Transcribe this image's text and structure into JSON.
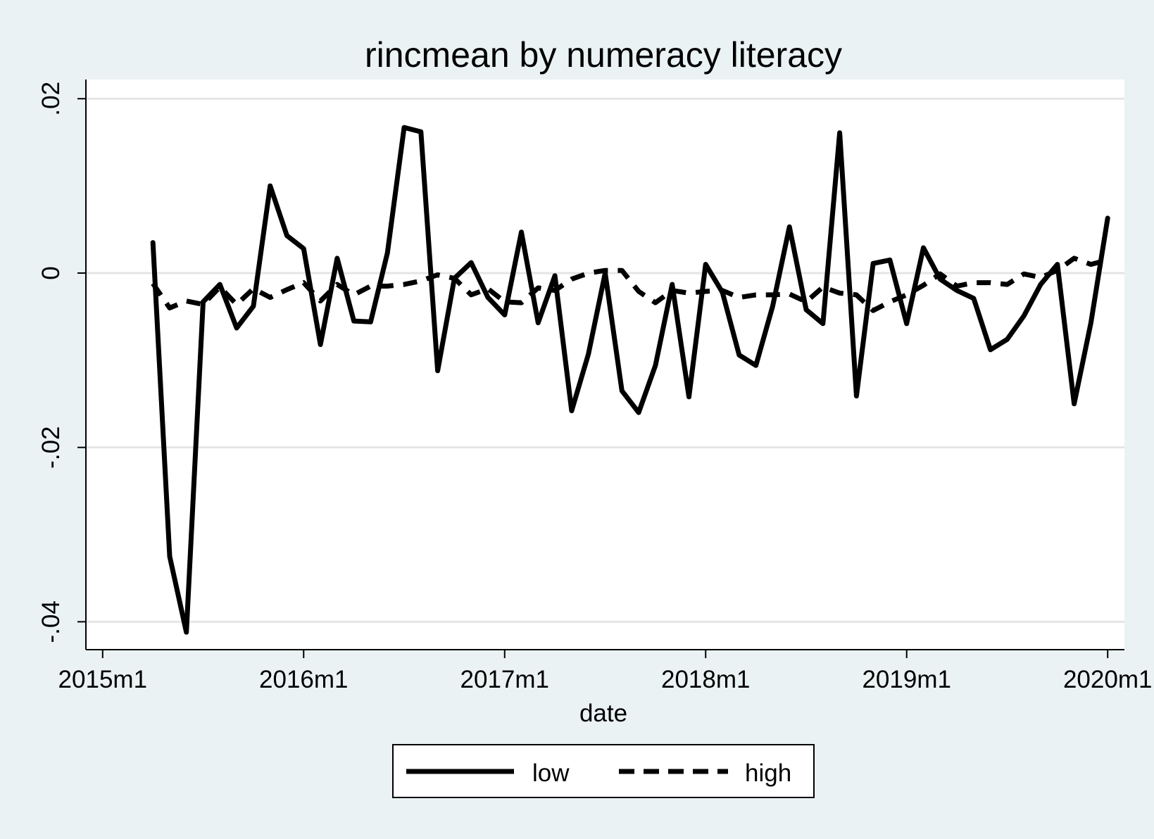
{
  "chart_data": {
    "type": "line",
    "title": "rincmean by numeracy literacy",
    "xlabel": "date",
    "ylabel": "",
    "x_ticks": [
      "2015m1",
      "2016m1",
      "2017m1",
      "2018m1",
      "2019m1",
      "2020m1"
    ],
    "y_ticks": [
      {
        "value": 0.02,
        "label": ".02"
      },
      {
        "value": 0,
        "label": "0"
      },
      {
        "value": -0.02,
        "label": "-.02"
      },
      {
        "value": -0.04,
        "label": "-.04"
      }
    ],
    "xlim": [
      "2014m12",
      "2020m2"
    ],
    "ylim": [
      -0.0432,
      0.0222
    ],
    "grid": true,
    "legend_position": "bottom",
    "x": [
      "2015m4",
      "2015m5",
      "2015m6",
      "2015m7",
      "2015m8",
      "2015m9",
      "2015m10",
      "2015m11",
      "2015m12",
      "2016m1",
      "2016m2",
      "2016m3",
      "2016m4",
      "2016m5",
      "2016m6",
      "2016m7",
      "2016m8",
      "2016m9",
      "2016m10",
      "2016m11",
      "2016m12",
      "2017m1",
      "2017m2",
      "2017m3",
      "2017m4",
      "2017m5",
      "2017m6",
      "2017m7",
      "2017m8",
      "2017m9",
      "2017m10",
      "2017m11",
      "2017m12",
      "2018m1",
      "2018m2",
      "2018m3",
      "2018m4",
      "2018m5",
      "2018m6",
      "2018m7",
      "2018m8",
      "2018m9",
      "2018m10",
      "2018m11",
      "2018m12",
      "2019m1",
      "2019m2",
      "2019m3",
      "2019m4",
      "2019m5",
      "2019m6",
      "2019m7",
      "2019m8",
      "2019m9",
      "2019m10",
      "2019m11",
      "2019m12",
      "2020m1"
    ],
    "series": [
      {
        "name": "low",
        "style": "solid",
        "color": "#000000",
        "values": [
          0.0035,
          -0.0325,
          -0.0412,
          -0.0033,
          -0.0013,
          -0.0063,
          -0.0038,
          0.01,
          0.0043,
          0.0028,
          -0.0082,
          0.0017,
          -0.0055,
          -0.0056,
          0.0023,
          0.0167,
          0.0162,
          -0.0112,
          -0.0006,
          0.0012,
          -0.0028,
          -0.0048,
          0.0047,
          -0.0057,
          -0.0003,
          -0.0158,
          -0.0093,
          0.0,
          -0.0135,
          -0.016,
          -0.0106,
          -0.0013,
          -0.0142,
          0.001,
          -0.0022,
          -0.0094,
          -0.0106,
          -0.0038,
          0.0053,
          -0.0042,
          -0.0058,
          0.0161,
          -0.0141,
          0.0011,
          0.0015,
          -0.0058,
          0.0029,
          -0.0007,
          -0.002,
          -0.0029,
          -0.0088,
          -0.0076,
          -0.0049,
          -0.0013,
          0.001,
          -0.015,
          -0.0057,
          0.0063
        ]
      },
      {
        "name": "high",
        "style": "dashed",
        "color": "#000000",
        "values": [
          -0.0012,
          -0.004,
          -0.0032,
          -0.0036,
          -0.0016,
          -0.0036,
          -0.0018,
          -0.0028,
          -0.0019,
          -0.0011,
          -0.0032,
          -0.0013,
          -0.0025,
          -0.0015,
          -0.0015,
          -0.0013,
          -0.0009,
          -0.0002,
          -0.0006,
          -0.0025,
          -0.0018,
          -0.0033,
          -0.0034,
          -0.0017,
          -0.002,
          -0.0007,
          0.0,
          0.0003,
          0.0003,
          -0.0021,
          -0.0034,
          -0.002,
          -0.0023,
          -0.0021,
          -0.002,
          -0.0028,
          -0.0025,
          -0.0025,
          -0.0024,
          -0.0033,
          -0.0016,
          -0.0023,
          -0.0025,
          -0.0043,
          -0.0033,
          -0.0025,
          -0.0014,
          -0.0001,
          -0.0015,
          -0.0011,
          -0.0011,
          -0.0013,
          -0.0001,
          -0.0005,
          0.0003,
          0.0017,
          0.001,
          0.0015
        ]
      }
    ]
  }
}
